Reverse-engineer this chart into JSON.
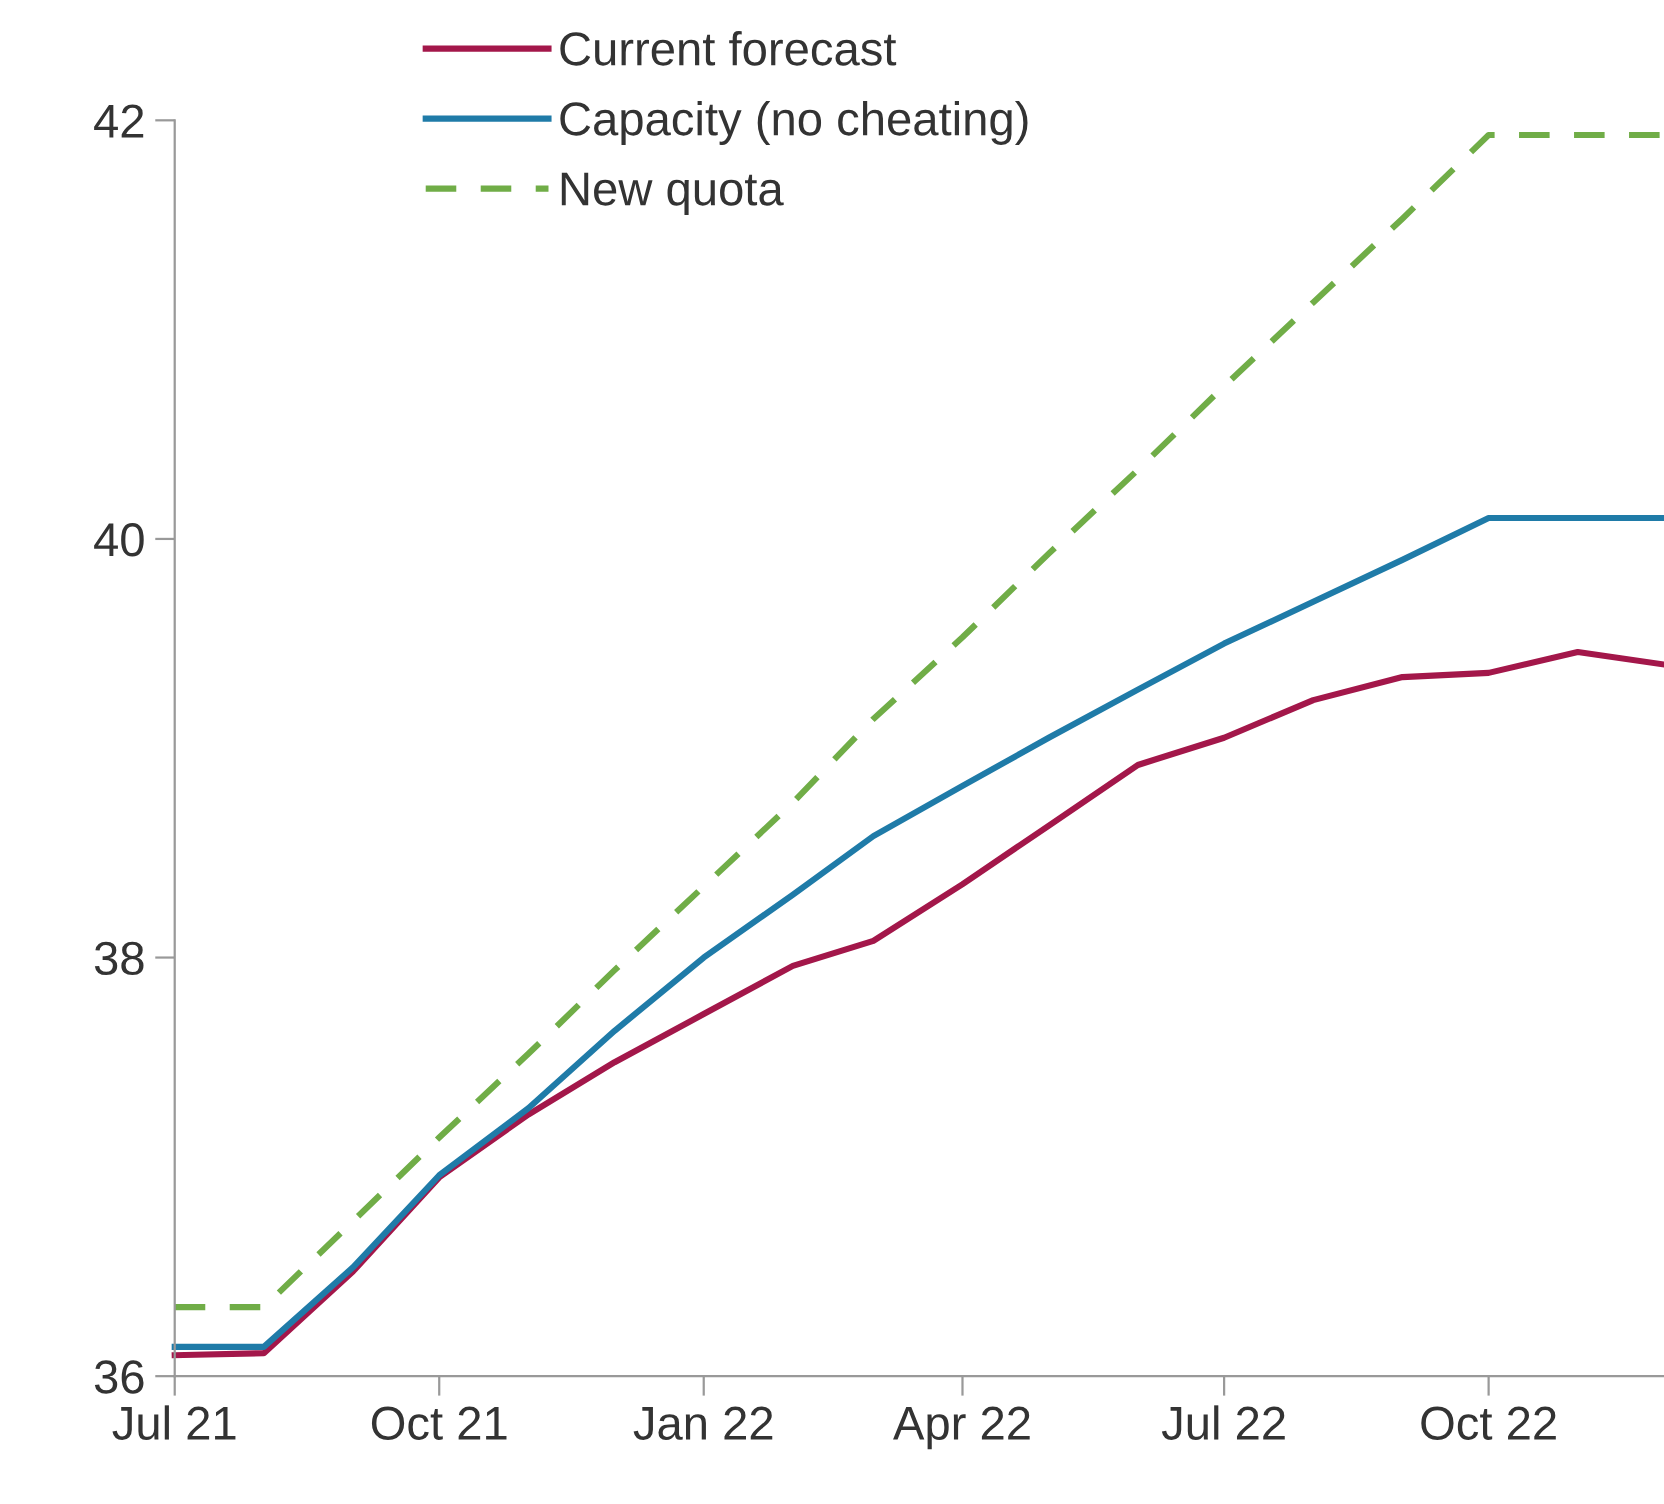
{
  "chart_data": {
    "type": "line",
    "x": [
      "2021-07",
      "2021-08",
      "2021-09",
      "2021-10",
      "2021-11",
      "2021-12",
      "2022-01",
      "2022-02",
      "2022-03",
      "2022-04",
      "2022-05",
      "2022-06",
      "2022-07",
      "2022-08",
      "2022-09",
      "2022-10",
      "2022-11",
      "2022-12"
    ],
    "series": [
      {
        "name": "Current forecast",
        "color": "#a3174a",
        "line_style": "solid",
        "values": [
          36.1,
          36.11,
          36.5,
          36.95,
          37.25,
          37.5,
          37.73,
          37.96,
          38.08,
          38.35,
          38.63,
          38.92,
          39.05,
          39.23,
          39.34,
          39.36,
          39.46,
          39.4
        ]
      },
      {
        "name": "Capacity (no cheating)",
        "color": "#1f7ba8",
        "line_style": "solid",
        "values": [
          36.14,
          36.14,
          36.52,
          36.96,
          37.28,
          37.65,
          38.0,
          38.3,
          38.58,
          38.82,
          39.05,
          39.28,
          39.5,
          39.7,
          39.9,
          40.1,
          40.1,
          40.1
        ]
      },
      {
        "name": "New quota",
        "color": "#70ad47",
        "line_style": "dashed",
        "values": [
          36.33,
          36.33,
          36.74,
          37.14,
          37.54,
          37.94,
          38.34,
          38.74,
          39.14,
          39.53,
          39.93,
          40.33,
          40.73,
          41.13,
          41.53,
          41.93,
          41.93,
          41.93
        ]
      }
    ],
    "xlim": [
      "2021-07",
      "2022-12"
    ],
    "xticks": [
      {
        "value": "2021-07",
        "label": "Jul 21"
      },
      {
        "value": "2021-10",
        "label": "Oct 21"
      },
      {
        "value": "2022-01",
        "label": "Jan 22"
      },
      {
        "value": "2022-04",
        "label": "Apr 22"
      },
      {
        "value": "2022-07",
        "label": "Jul 22"
      },
      {
        "value": "2022-10",
        "label": "Oct 22"
      }
    ],
    "ylim": [
      36,
      42
    ],
    "yticks": [
      36,
      38,
      40,
      42
    ],
    "grid": false,
    "legend": "top left",
    "marker": "none"
  }
}
